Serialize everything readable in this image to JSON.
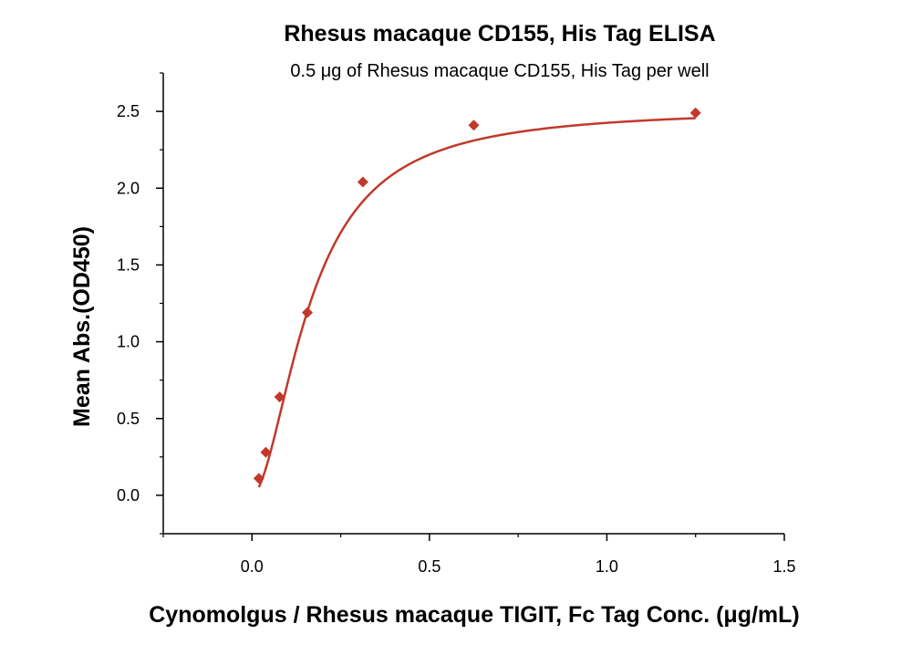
{
  "chart_data": {
    "type": "scatter",
    "title": "Rhesus macaque CD155, His Tag ELISA",
    "subtitle": "0.5 μg of Rhesus macaque CD155, His Tag per well",
    "xlabel": "Cynomolgus / Rhesus macaque TIGIT, Fc Tag Conc. (μg/mL)",
    "ylabel": "Mean Abs.(OD450)",
    "xlim": [
      -0.25,
      1.5
    ],
    "ylim": [
      -0.25,
      2.75
    ],
    "x_ticks": [
      0.0,
      0.5,
      1.0,
      1.5
    ],
    "x_tick_labels": [
      "0.0",
      "0.5",
      "1.0",
      "1.5"
    ],
    "y_ticks": [
      0.0,
      0.5,
      1.0,
      1.5,
      2.0,
      2.5
    ],
    "y_tick_labels": [
      "0.0",
      "0.5",
      "1.0",
      "1.5",
      "2.0",
      "2.5"
    ],
    "grid": false,
    "legend": "none",
    "color": "#c0392b",
    "marker": "diamond",
    "points": [
      {
        "x": 0.0195,
        "y": 0.11
      },
      {
        "x": 0.039,
        "y": 0.28
      },
      {
        "x": 0.078,
        "y": 0.64
      },
      {
        "x": 0.156,
        "y": 1.19
      },
      {
        "x": 0.3125,
        "y": 2.04
      },
      {
        "x": 0.625,
        "y": 2.41
      },
      {
        "x": 1.25,
        "y": 2.49
      }
    ],
    "fit_curve": {
      "type": "4PL",
      "bottom": 0.0,
      "top": 2.52,
      "ec50": 0.165,
      "hill": 1.8
    }
  }
}
